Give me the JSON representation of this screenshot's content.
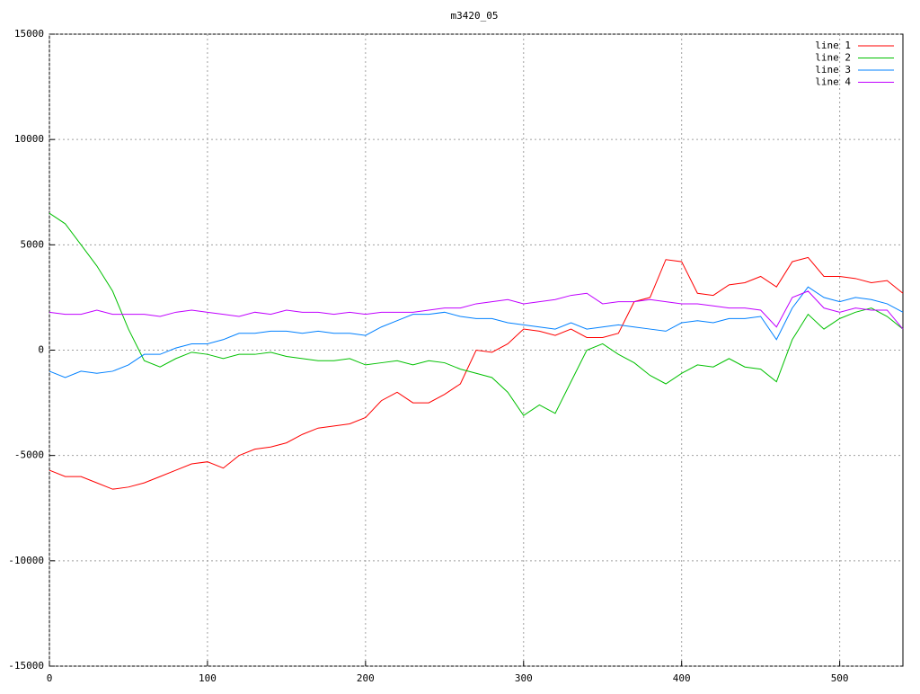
{
  "chart_data": {
    "type": "line",
    "title": "m3420_05",
    "x": [
      0,
      10,
      20,
      30,
      40,
      50,
      60,
      70,
      80,
      90,
      100,
      110,
      120,
      130,
      140,
      150,
      160,
      170,
      180,
      190,
      200,
      210,
      220,
      230,
      240,
      250,
      260,
      270,
      280,
      290,
      300,
      310,
      320,
      330,
      340,
      350,
      360,
      370,
      380,
      390,
      400,
      410,
      420,
      430,
      440,
      450,
      460,
      470,
      480,
      490,
      500,
      510,
      520,
      530,
      540
    ],
    "series": [
      {
        "name": "line 1",
        "color": "#ff0000",
        "values": [
          -5700,
          -6000,
          -6000,
          -6300,
          -6600,
          -6500,
          -6300,
          -6000,
          -5700,
          -5400,
          -5300,
          -5600,
          -5000,
          -4700,
          -4600,
          -4400,
          -4000,
          -3700,
          -3600,
          -3500,
          -3200,
          -2400,
          -2000,
          -2500,
          -2500,
          -2100,
          -1600,
          0,
          -100,
          300,
          1000,
          900,
          700,
          1000,
          600,
          600,
          800,
          2300,
          2500,
          4300,
          4200,
          2700,
          2600,
          3100,
          3200,
          3500,
          3000,
          4200,
          4400,
          3500,
          3500,
          3400,
          3200,
          3300,
          2700
        ]
      },
      {
        "name": "line 2",
        "color": "#00c000",
        "values": [
          6500,
          6000,
          5000,
          4000,
          2800,
          1000,
          -500,
          -800,
          -400,
          -100,
          -200,
          -400,
          -200,
          -200,
          -100,
          -300,
          -400,
          -500,
          -500,
          -400,
          -700,
          -600,
          -500,
          -700,
          -500,
          -600,
          -900,
          -1100,
          -1300,
          -2000,
          -3100,
          -2600,
          -3000,
          -1500,
          0,
          300,
          -200,
          -600,
          -1200,
          -1600,
          -1100,
          -700,
          -800,
          -400,
          -800,
          -900,
          -1500,
          500,
          1700,
          1000,
          1500,
          1800,
          2000,
          1600,
          1000
        ]
      },
      {
        "name": "line 3",
        "color": "#0080ff",
        "values": [
          -1000,
          -1300,
          -1000,
          -1100,
          -1000,
          -700,
          -200,
          -200,
          100,
          300,
          300,
          500,
          800,
          800,
          900,
          900,
          800,
          900,
          800,
          800,
          700,
          1100,
          1400,
          1700,
          1700,
          1800,
          1600,
          1500,
          1500,
          1300,
          1200,
          1100,
          1000,
          1300,
          1000,
          1100,
          1200,
          1100,
          1000,
          900,
          1300,
          1400,
          1300,
          1500,
          1500,
          1600,
          500,
          2000,
          3000,
          2500,
          2300,
          2500,
          2400,
          2200,
          1800
        ]
      },
      {
        "name": "line 4",
        "color": "#c000ff",
        "values": [
          1800,
          1700,
          1700,
          1900,
          1700,
          1700,
          1700,
          1600,
          1800,
          1900,
          1800,
          1700,
          1600,
          1800,
          1700,
          1900,
          1800,
          1800,
          1700,
          1800,
          1700,
          1800,
          1800,
          1800,
          1900,
          2000,
          2000,
          2200,
          2300,
          2400,
          2200,
          2300,
          2400,
          2600,
          2700,
          2200,
          2300,
          2300,
          2400,
          2300,
          2200,
          2200,
          2100,
          2000,
          2000,
          1900,
          1100,
          2500,
          2800,
          2000,
          1800,
          2000,
          1900,
          1900,
          1000
        ]
      }
    ],
    "xlim": [
      0,
      540
    ],
    "xticks": [
      0,
      100,
      200,
      300,
      400,
      500
    ],
    "ylim": [
      -15000,
      15000
    ],
    "yticks": [
      -15000,
      -10000,
      -5000,
      0,
      5000,
      10000,
      15000
    ],
    "grid": true,
    "legend": "top-right"
  }
}
